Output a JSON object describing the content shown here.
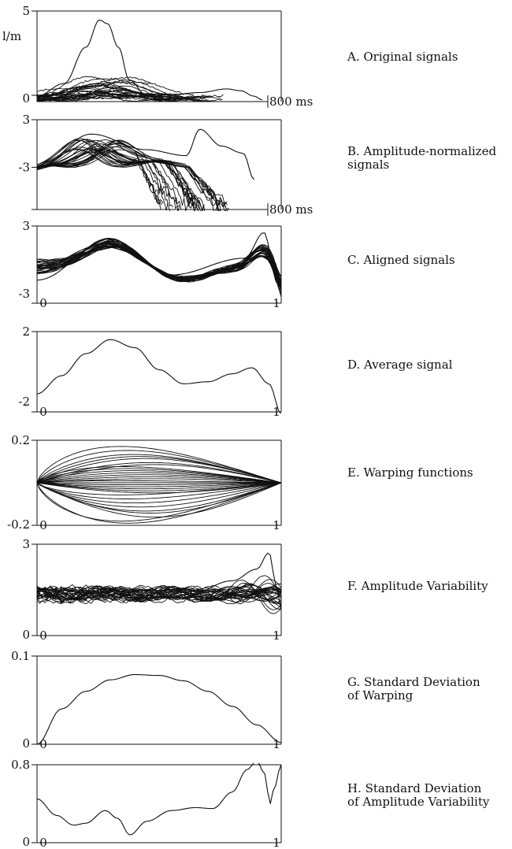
{
  "figure": {
    "panels": [
      {
        "id": "A",
        "title": [
          "A. Original signals"
        ],
        "ylabel": "l/m",
        "yticks": [
          "5",
          "0"
        ],
        "xend": "800 ms"
      },
      {
        "id": "B",
        "title": [
          "B. Amplitude-normalized",
          "signals"
        ],
        "yticks": [
          "3",
          "-3"
        ],
        "xend": "800 ms"
      },
      {
        "id": "C",
        "title": [
          "C. Aligned signals"
        ],
        "yticks": [
          "3",
          "-3"
        ],
        "xticks": [
          "0",
          "1"
        ]
      },
      {
        "id": "D",
        "title": [
          "D. Average signal"
        ],
        "yticks": [
          "2",
          "-2"
        ],
        "xticks": [
          "0",
          "1"
        ]
      },
      {
        "id": "E",
        "title": [
          "E. Warping functions"
        ],
        "yticks": [
          "0.2",
          "-0.2"
        ],
        "xticks": [
          "0",
          "1"
        ]
      },
      {
        "id": "F",
        "title": [
          "F. Amplitude Variability"
        ],
        "yticks": [
          "3",
          "0"
        ],
        "xticks": [
          "0",
          "1"
        ]
      },
      {
        "id": "G",
        "title": [
          "G. Standard Deviation",
          "of Warping"
        ],
        "yticks": [
          "0.1",
          "0"
        ],
        "xticks": [
          "0",
          "1"
        ]
      },
      {
        "id": "H",
        "title": [
          "H. Standard Deviation",
          "of Amplitude Variability"
        ],
        "yticks": [
          "0.8",
          "0"
        ],
        "xticks": [
          "0",
          "1"
        ]
      }
    ]
  },
  "chart_data": [
    {
      "id": "A",
      "type": "line",
      "title": "A. Original signals",
      "ylabel": "l/m",
      "xlabel": "",
      "xlim": [
        0,
        900
      ],
      "ylim": [
        0,
        5
      ],
      "xunit": "ms",
      "n_series": 28,
      "series_kind": "original",
      "highlight": {
        "x": [
          0,
          100,
          180,
          230,
          260,
          300,
          340,
          400,
          450
        ],
        "y": [
          0.3,
          1.0,
          3.0,
          4.5,
          4.3,
          3.0,
          1.2,
          0.4,
          0.1
        ]
      },
      "tail": {
        "x": [
          400,
          500,
          600,
          700,
          750,
          800,
          830
        ],
        "y": [
          0.3,
          0.4,
          0.5,
          0.7,
          0.6,
          0.3,
          0.1
        ]
      }
    },
    {
      "id": "B",
      "type": "line",
      "title": "B. Amplitude-normalized signals",
      "xlabel": "",
      "xlim": [
        0,
        900
      ],
      "ylim": [
        -4.5,
        3
      ],
      "xunit": "ms",
      "n_series": 30,
      "series_kind": "normalized",
      "highlight": {
        "x": [
          0,
          200,
          400,
          550,
          600,
          680,
          760,
          800
        ],
        "y": [
          -1.0,
          1.8,
          0.5,
          0.0,
          2.2,
          0.8,
          0.2,
          -2.0
        ]
      }
    },
    {
      "id": "C",
      "type": "line",
      "title": "C. Aligned signals",
      "xlim": [
        0,
        1
      ],
      "ylim": [
        -3,
        3
      ],
      "n_series": 30,
      "series_kind": "aligned",
      "highlight": {
        "x": [
          0,
          0.3,
          0.55,
          0.85,
          0.93,
          0.97,
          1.0
        ],
        "y": [
          -1.2,
          2.0,
          -0.8,
          0.5,
          2.5,
          0.0,
          -2.5
        ]
      }
    },
    {
      "id": "D",
      "type": "line",
      "title": "D. Average signal",
      "xlim": [
        0,
        1
      ],
      "ylim": [
        -2,
        2
      ],
      "x": [
        0,
        0.1,
        0.2,
        0.3,
        0.4,
        0.5,
        0.6,
        0.7,
        0.8,
        0.88,
        0.95,
        1.0
      ],
      "y": [
        -1.1,
        -0.2,
        0.9,
        1.6,
        1.2,
        0.1,
        -0.6,
        -0.5,
        -0.1,
        0.2,
        -0.6,
        -2.1
      ]
    },
    {
      "id": "E",
      "type": "line",
      "title": "E. Warping functions",
      "xlim": [
        0,
        1
      ],
      "ylim": [
        -0.2,
        0.2
      ],
      "n_series": 30,
      "series_kind": "warping",
      "amplitudes": [
        0.18,
        0.16,
        0.14,
        0.13,
        0.12,
        0.1,
        0.09,
        0.08,
        0.07,
        0.06,
        0.05,
        0.04,
        0.03,
        0.02,
        0.01,
        0,
        -0.01,
        -0.02,
        -0.03,
        -0.04,
        -0.05,
        -0.06,
        -0.08,
        -0.1,
        -0.12,
        -0.14,
        -0.15,
        -0.17,
        -0.19,
        -0.2
      ]
    },
    {
      "id": "F",
      "type": "line",
      "title": "F. Amplitude Variability",
      "xlim": [
        0,
        1
      ],
      "ylim": [
        -2.5,
        3
      ],
      "n_series": 30,
      "series_kind": "variability",
      "highlight": {
        "x": [
          0,
          0.3,
          0.6,
          0.8,
          0.9,
          0.95,
          0.98,
          1.0
        ],
        "y": [
          0.3,
          0.0,
          -0.2,
          0.8,
          1.5,
          2.5,
          0.5,
          -1.0
        ]
      }
    },
    {
      "id": "G",
      "type": "line",
      "title": "G. Standard Deviation of Warping",
      "xlim": [
        0,
        1
      ],
      "ylim": [
        0,
        0.1
      ],
      "x": [
        0,
        0.1,
        0.2,
        0.3,
        0.4,
        0.5,
        0.6,
        0.7,
        0.8,
        0.9,
        1.0
      ],
      "y": [
        0.0,
        0.04,
        0.06,
        0.073,
        0.079,
        0.078,
        0.072,
        0.06,
        0.043,
        0.022,
        0.002
      ]
    },
    {
      "id": "H",
      "type": "line",
      "title": "H. Standard Deviation of Amplitude Variability",
      "xlim": [
        0,
        1
      ],
      "ylim": [
        0,
        0.8
      ],
      "x": [
        0,
        0.08,
        0.15,
        0.2,
        0.28,
        0.33,
        0.38,
        0.45,
        0.55,
        0.65,
        0.72,
        0.8,
        0.86,
        0.9,
        0.93,
        0.955,
        0.97,
        1.0
      ],
      "y": [
        0.45,
        0.28,
        0.18,
        0.2,
        0.33,
        0.25,
        0.08,
        0.22,
        0.33,
        0.36,
        0.35,
        0.52,
        0.75,
        0.84,
        0.72,
        0.4,
        0.55,
        0.8
      ]
    }
  ]
}
